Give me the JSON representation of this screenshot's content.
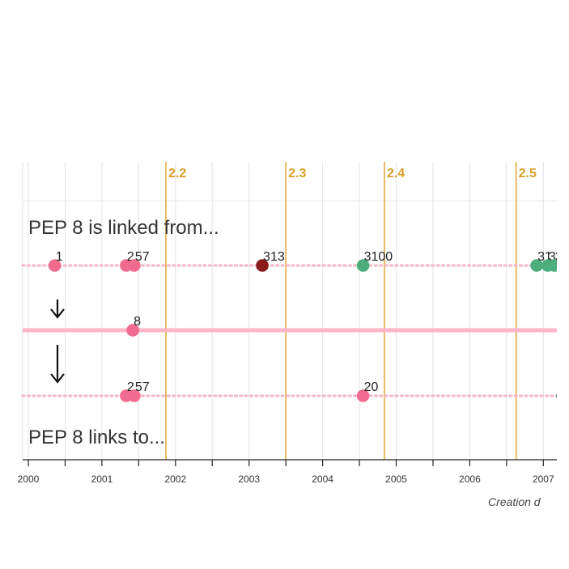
{
  "chart_data": {
    "type": "scatter",
    "title": "",
    "focus_pep": "8",
    "headings": {
      "linked_from": "PEP 8 is linked from...",
      "links_to": "PEP 8 links to..."
    },
    "xlabel": "Creation d",
    "xlim": [
      2000.0,
      2007.3
    ],
    "x_ticks": [
      {
        "value": 2000,
        "label": "2000"
      },
      {
        "value": 2001,
        "label": "2001"
      },
      {
        "value": 2002,
        "label": "2002"
      },
      {
        "value": 2003,
        "label": "2003"
      },
      {
        "value": 2004,
        "label": "2004"
      },
      {
        "value": 2005,
        "label": "2005"
      },
      {
        "value": 2006,
        "label": "2006"
      },
      {
        "value": 2007,
        "label": "2007"
      }
    ],
    "releases": [
      {
        "label": "2.2",
        "x": 2001.87
      },
      {
        "label": "2.3",
        "x": 2003.5
      },
      {
        "label": "2.4",
        "x": 2004.84
      },
      {
        "label": "2.5",
        "x": 2006.63
      }
    ],
    "rows": [
      {
        "name": "linked from",
        "points": [
          {
            "x": 2000.36,
            "label": "1",
            "color": "#f06b8e"
          },
          {
            "x": 2001.33,
            "label": "2",
            "color": "#f06b8e"
          },
          {
            "x": 2001.44,
            "label": "57",
            "color": "#f06b8e"
          },
          {
            "x": 2003.18,
            "label": "313",
            "color": "#8b1a1a"
          },
          {
            "x": 2004.55,
            "label": "3100",
            "color": "#4cae7c"
          },
          {
            "x": 2006.91,
            "label": "31",
            "color": "#4cae7c"
          },
          {
            "x": 2007.06,
            "label": "3",
            "color": "#4cae7c"
          },
          {
            "x": 2007.15,
            "label": "3",
            "color": "#4cae7c"
          }
        ]
      },
      {
        "name": "focus",
        "points": [
          {
            "x": 2001.42,
            "label": "8",
            "color": "#f06b8e"
          }
        ]
      },
      {
        "name": "links to",
        "points": [
          {
            "x": 2001.33,
            "label": "2",
            "color": "#f06b8e"
          },
          {
            "x": 2001.44,
            "label": "57",
            "color": "#f06b8e"
          },
          {
            "x": 2004.55,
            "label": "20",
            "color": "#f06b8e"
          },
          {
            "x": 2007.26,
            "label": "",
            "color": "#4cae7c"
          }
        ]
      }
    ],
    "colors": {
      "gridline": "#e3e3e3",
      "release_line": "#e0a634",
      "focus_band": "#ffb6c8",
      "dotted_track": "#f6b5c6",
      "arrow": "#111111"
    }
  }
}
